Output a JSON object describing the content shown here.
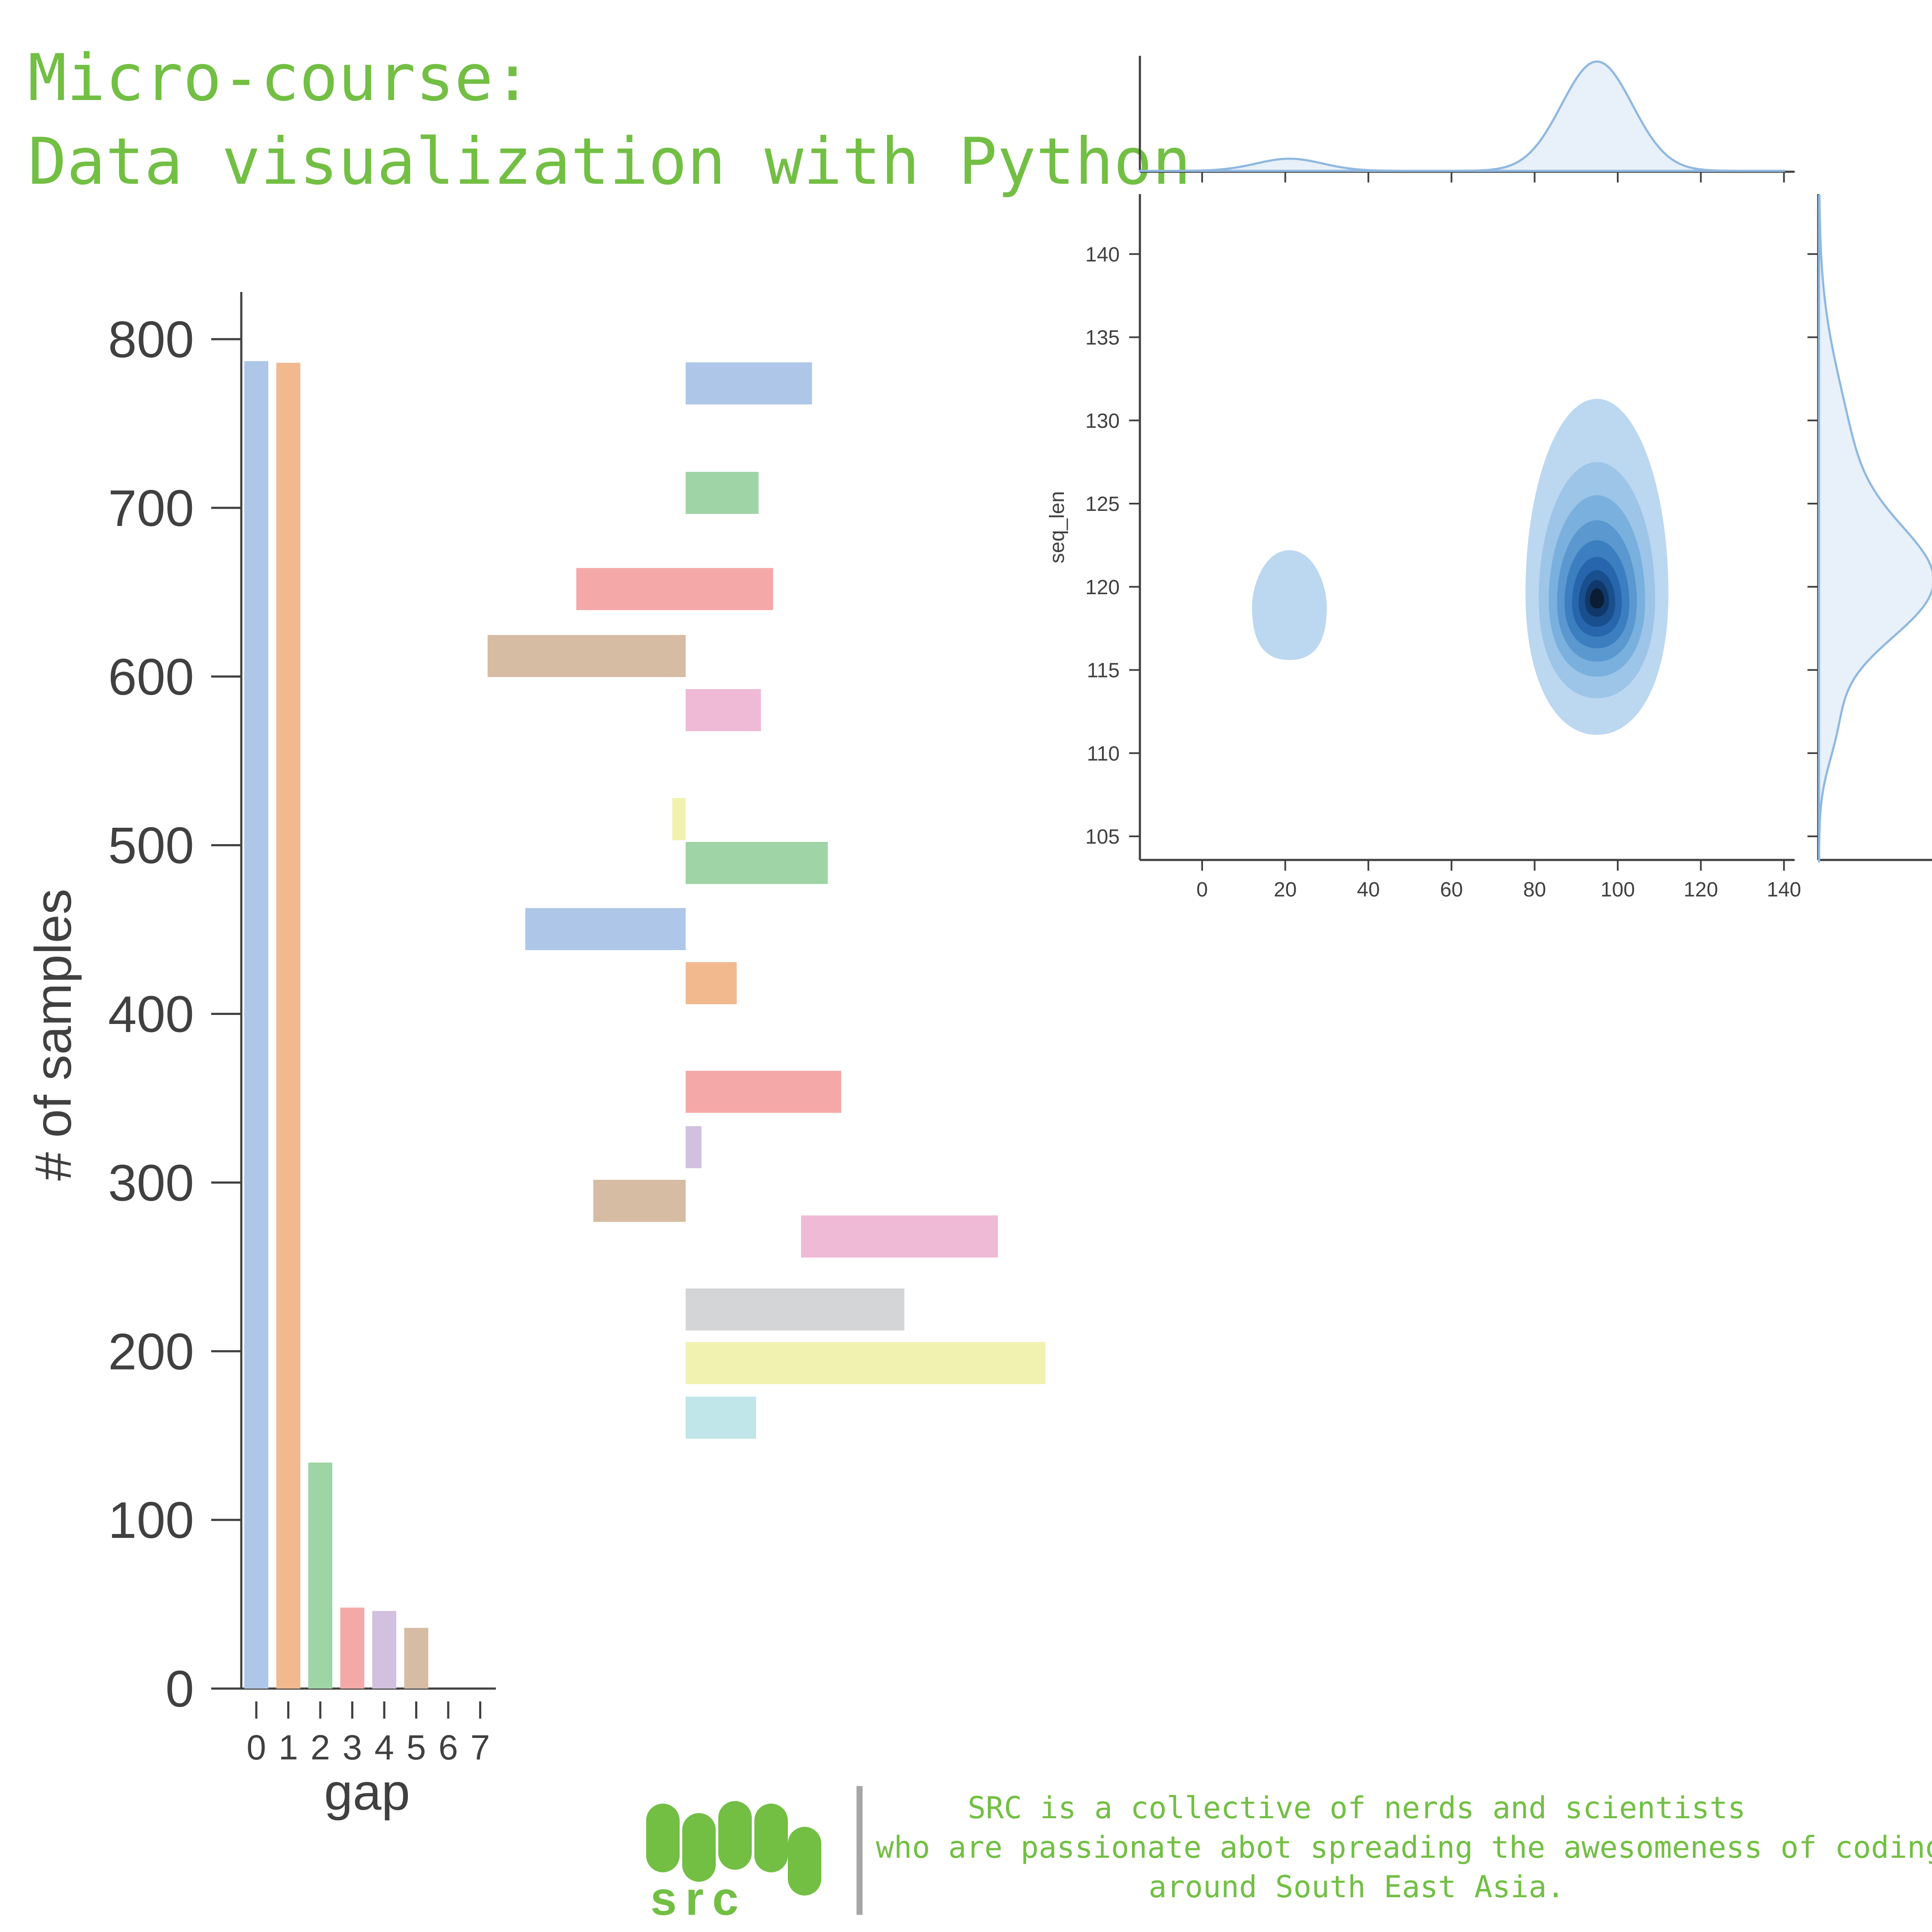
{
  "title": {
    "line1": "Micro-course:",
    "line2": "Data visualization with Python"
  },
  "footer": {
    "logo_text": "src",
    "lines": [
      "SRC is a collective of nerds and scientists",
      "who are passionate abot spreading the awesomeness of coding",
      "around South East Asia."
    ]
  },
  "colors": {
    "accent": "#72bf44",
    "axis": "#404040",
    "separator": "#a6a6a6",
    "palette": [
      "#aec7e8",
      "#f2b98f",
      "#9fd4a6",
      "#f4a9a8",
      "#d2c0df",
      "#d6bca3",
      "#efbad6",
      "#d4d5d6",
      "#f2f2b0",
      "#c0e6e9"
    ]
  },
  "chart_data": [
    {
      "type": "bar",
      "categories": [
        "0",
        "1",
        "2",
        "3",
        "4",
        "5",
        "6",
        "7"
      ],
      "values": [
        787,
        786,
        134,
        48,
        46,
        36,
        0,
        0
      ],
      "xlabel": "gap",
      "ylabel": "# of samples",
      "ylim": [
        0,
        830
      ],
      "yticks": [
        "0",
        "100",
        "200",
        "300",
        "400",
        "500",
        "600",
        "700",
        "800"
      ],
      "grid": false
    },
    {
      "type": "bar",
      "orientation": "horizontal",
      "axes": "hidden",
      "bars": [
        {
          "start": 0,
          "end": 10.4,
          "color": "#aec7e8"
        },
        {
          "start": 0,
          "end": 6.0,
          "color": "#9fd4a6"
        },
        {
          "start": -9.0,
          "end": 7.2,
          "color": "#f4a9a8"
        },
        {
          "start": -16.3,
          "end": 0,
          "color": "#d6bca3"
        },
        {
          "start": 0,
          "end": 6.2,
          "color": "#efbad6"
        },
        {
          "start": -1.1,
          "end": 0,
          "color": "#f2f2b0"
        },
        {
          "start": 0,
          "end": 11.7,
          "color": "#9fd4a6"
        },
        {
          "start": -13.2,
          "end": 0,
          "color": "#aec7e8"
        },
        {
          "start": 0,
          "end": 4.2,
          "color": "#f2b98f"
        },
        {
          "start": 0,
          "end": 12.8,
          "color": "#f4a9a8"
        },
        {
          "start": 0,
          "end": 1.3,
          "color": "#d2c0df"
        },
        {
          "start": -7.6,
          "end": 0,
          "color": "#d6bca3"
        },
        {
          "start": 9.5,
          "end": 25.7,
          "color": "#efbad6"
        },
        {
          "start": 0,
          "end": 18.0,
          "color": "#d4d5d6"
        },
        {
          "start": 0,
          "end": 29.6,
          "color": "#f2f2b0"
        },
        {
          "start": 0,
          "end": 5.8,
          "color": "#c0e6e9"
        }
      ]
    },
    {
      "type": "heatmap",
      "kind": "kde_joint",
      "xlabel": "",
      "ylabel": "seq_len",
      "xlim": [
        -15,
        142
      ],
      "ylim": [
        103.5,
        143.5
      ],
      "xticks": [
        "0",
        "20",
        "40",
        "60",
        "80",
        "100",
        "120",
        "140"
      ],
      "yticks": [
        "105",
        "110",
        "115",
        "120",
        "125",
        "130",
        "135",
        "140"
      ],
      "modes": [
        {
          "x": 95,
          "y": 119.5,
          "weight": 0.9
        },
        {
          "x": 21,
          "y": 118.8,
          "weight": 0.1
        }
      ],
      "marginal_x": "density with a small peak near 21 and a main peak near 95",
      "marginal_y": "density with a main peak near 120",
      "color": "#2b7bba"
    }
  ]
}
